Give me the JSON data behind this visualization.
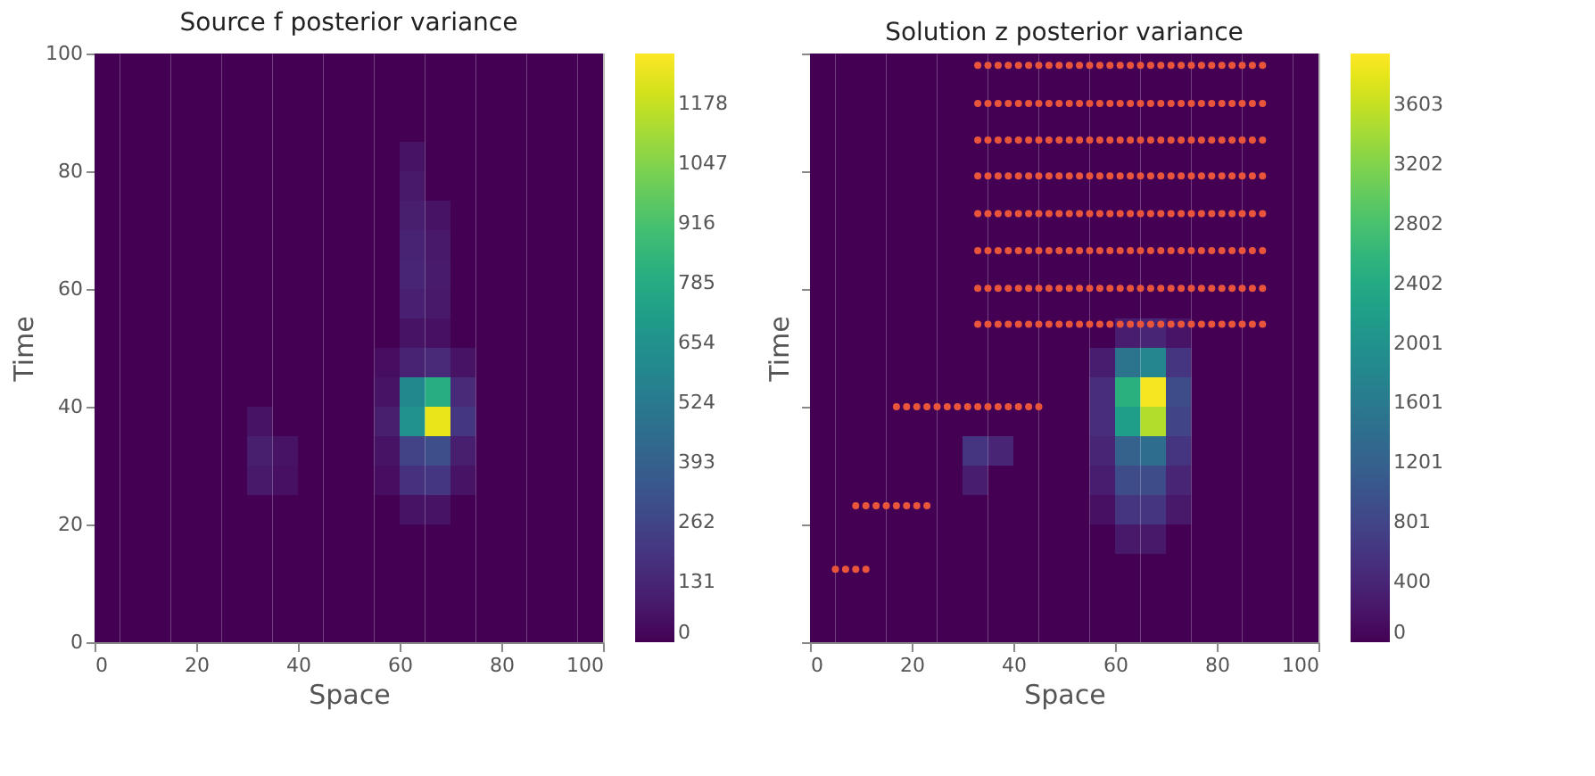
{
  "chart_data": [
    {
      "type": "heatmap",
      "title": "Source f posterior variance",
      "xlabel": "Space",
      "ylabel": "Time",
      "cells": [
        [
          0,
          0,
          0,
          0,
          0,
          0,
          0,
          0,
          0,
          0,
          0,
          0,
          0,
          0,
          0,
          0,
          0,
          0,
          0,
          0
        ],
        [
          0,
          0,
          0,
          0,
          0,
          0,
          0,
          0,
          0,
          0,
          0,
          0,
          0,
          0,
          0,
          0,
          0,
          0,
          0,
          0
        ],
        [
          0,
          0,
          0,
          0,
          0,
          0,
          0,
          0,
          0,
          0,
          0,
          0,
          0,
          0,
          0,
          0,
          0,
          0,
          0,
          0
        ],
        [
          0,
          0,
          0,
          0,
          0,
          0,
          0,
          0,
          0,
          0,
          0,
          0,
          60,
          0,
          0,
          0,
          0,
          0,
          0,
          0
        ],
        [
          0,
          0,
          0,
          0,
          0,
          0,
          0,
          0,
          0,
          0,
          0,
          0,
          80,
          0,
          0,
          0,
          0,
          0,
          0,
          0
        ],
        [
          0,
          0,
          0,
          0,
          0,
          0,
          0,
          0,
          0,
          0,
          0,
          0,
          100,
          60,
          0,
          0,
          0,
          0,
          0,
          0
        ],
        [
          0,
          0,
          0,
          0,
          0,
          0,
          0,
          0,
          0,
          0,
          0,
          0,
          120,
          80,
          0,
          0,
          0,
          0,
          0,
          0
        ],
        [
          0,
          0,
          0,
          0,
          0,
          0,
          0,
          0,
          0,
          0,
          0,
          0,
          130,
          90,
          0,
          0,
          0,
          0,
          0,
          0
        ],
        [
          0,
          0,
          0,
          0,
          0,
          0,
          0,
          0,
          0,
          0,
          0,
          0,
          110,
          80,
          0,
          0,
          0,
          0,
          0,
          0
        ],
        [
          0,
          0,
          0,
          0,
          0,
          0,
          0,
          0,
          0,
          0,
          0,
          0,
          60,
          50,
          0,
          0,
          0,
          0,
          0,
          0
        ],
        [
          0,
          0,
          0,
          0,
          0,
          0,
          0,
          0,
          0,
          0,
          0,
          40,
          120,
          150,
          60,
          0,
          0,
          0,
          0,
          0
        ],
        [
          0,
          0,
          0,
          0,
          0,
          0,
          0,
          0,
          0,
          0,
          0,
          60,
          600,
          800,
          150,
          0,
          0,
          0,
          0,
          0
        ],
        [
          0,
          0,
          0,
          0,
          0,
          0,
          60,
          0,
          0,
          0,
          0,
          100,
          650,
          1250,
          200,
          0,
          0,
          0,
          0,
          0
        ],
        [
          0,
          0,
          0,
          0,
          0,
          0,
          100,
          60,
          0,
          0,
          0,
          60,
          250,
          300,
          100,
          0,
          0,
          0,
          0,
          0
        ],
        [
          0,
          0,
          0,
          0,
          0,
          0,
          80,
          50,
          0,
          0,
          0,
          40,
          180,
          200,
          60,
          0,
          0,
          0,
          0,
          0
        ],
        [
          0,
          0,
          0,
          0,
          0,
          0,
          0,
          0,
          0,
          0,
          0,
          0,
          60,
          60,
          0,
          0,
          0,
          0,
          0,
          0
        ],
        [
          0,
          0,
          0,
          0,
          0,
          0,
          0,
          0,
          0,
          0,
          0,
          0,
          0,
          0,
          0,
          0,
          0,
          0,
          0,
          0
        ],
        [
          0,
          0,
          0,
          0,
          0,
          0,
          0,
          0,
          0,
          0,
          0,
          0,
          0,
          0,
          0,
          0,
          0,
          0,
          0,
          0
        ],
        [
          0,
          0,
          0,
          0,
          0,
          0,
          0,
          0,
          0,
          0,
          0,
          0,
          0,
          0,
          0,
          0,
          0,
          0,
          0,
          0
        ],
        [
          0,
          0,
          0,
          0,
          0,
          0,
          0,
          0,
          0,
          0,
          0,
          0,
          0,
          0,
          0,
          0,
          0,
          0,
          0,
          0
        ]
      ],
      "clim": [
        0,
        1290
      ],
      "cticks": [
        0,
        131,
        262,
        393,
        524,
        654,
        785,
        916,
        1047,
        1178
      ],
      "xlim": [
        0,
        100
      ],
      "xticks": [
        0,
        20,
        40,
        60,
        80,
        100
      ],
      "ylim": [
        0,
        100
      ],
      "yticks": [
        0,
        20,
        40,
        60,
        80,
        100
      ]
    },
    {
      "type": "heatmap",
      "title": "Solution z posterior variance",
      "xlabel": "Space",
      "ylabel": "Time",
      "tick_labels": "x",
      "cells": [
        [
          0,
          0,
          0,
          0,
          0,
          0,
          0,
          0,
          0,
          0,
          0,
          0,
          0,
          0,
          0,
          0,
          0,
          0,
          0,
          0
        ],
        [
          0,
          0,
          0,
          0,
          0,
          0,
          0,
          0,
          0,
          0,
          0,
          0,
          0,
          0,
          0,
          0,
          0,
          0,
          0,
          0
        ],
        [
          0,
          0,
          0,
          0,
          0,
          0,
          0,
          0,
          0,
          0,
          0,
          0,
          0,
          0,
          0,
          0,
          0,
          0,
          0,
          0
        ],
        [
          0,
          0,
          0,
          0,
          0,
          0,
          0,
          0,
          0,
          0,
          0,
          0,
          0,
          0,
          0,
          0,
          0,
          0,
          0,
          0
        ],
        [
          0,
          0,
          0,
          0,
          0,
          0,
          0,
          0,
          0,
          0,
          0,
          0,
          0,
          0,
          0,
          0,
          0,
          0,
          0,
          0
        ],
        [
          0,
          0,
          0,
          0,
          0,
          0,
          0,
          0,
          0,
          0,
          0,
          0,
          0,
          0,
          0,
          0,
          0,
          0,
          0,
          0
        ],
        [
          0,
          0,
          0,
          0,
          0,
          0,
          0,
          0,
          0,
          0,
          0,
          0,
          0,
          0,
          0,
          0,
          0,
          0,
          0,
          0
        ],
        [
          0,
          0,
          0,
          0,
          0,
          0,
          0,
          0,
          0,
          0,
          0,
          0,
          0,
          0,
          0,
          0,
          0,
          0,
          0,
          0
        ],
        [
          0,
          0,
          0,
          0,
          0,
          0,
          0,
          0,
          0,
          0,
          0,
          0,
          0,
          0,
          0,
          0,
          0,
          0,
          0,
          0
        ],
        [
          0,
          0,
          0,
          0,
          0,
          0,
          0,
          0,
          0,
          0,
          0,
          0,
          300,
          400,
          200,
          0,
          0,
          0,
          0,
          0
        ],
        [
          0,
          0,
          0,
          0,
          0,
          0,
          0,
          0,
          0,
          0,
          0,
          300,
          1500,
          1800,
          600,
          0,
          0,
          0,
          0,
          0
        ],
        [
          0,
          0,
          0,
          0,
          0,
          0,
          0,
          0,
          0,
          0,
          0,
          500,
          2500,
          3900,
          900,
          0,
          0,
          0,
          0,
          0
        ],
        [
          0,
          0,
          0,
          0,
          0,
          0,
          0,
          0,
          0,
          0,
          0,
          500,
          2200,
          3500,
          800,
          0,
          0,
          0,
          0,
          0
        ],
        [
          0,
          0,
          0,
          0,
          0,
          0,
          600,
          400,
          0,
          0,
          0,
          400,
          1200,
          1400,
          600,
          0,
          0,
          0,
          0,
          0
        ],
        [
          0,
          0,
          0,
          0,
          0,
          0,
          300,
          0,
          0,
          0,
          0,
          300,
          900,
          900,
          400,
          0,
          0,
          0,
          0,
          0
        ],
        [
          0,
          0,
          0,
          0,
          0,
          0,
          0,
          0,
          0,
          0,
          0,
          150,
          600,
          600,
          250,
          0,
          0,
          0,
          0,
          0
        ],
        [
          0,
          0,
          0,
          0,
          0,
          0,
          0,
          0,
          0,
          0,
          0,
          0,
          250,
          250,
          0,
          0,
          0,
          0,
          0,
          0
        ],
        [
          0,
          0,
          0,
          0,
          0,
          0,
          0,
          0,
          0,
          0,
          0,
          0,
          0,
          0,
          0,
          0,
          0,
          0,
          0,
          0
        ],
        [
          0,
          0,
          0,
          0,
          0,
          0,
          0,
          0,
          0,
          0,
          0,
          0,
          0,
          0,
          0,
          0,
          0,
          0,
          0,
          0
        ],
        [
          0,
          0,
          0,
          0,
          0,
          0,
          0,
          0,
          0,
          0,
          0,
          0,
          0,
          0,
          0,
          0,
          0,
          0,
          0,
          0
        ]
      ],
      "clim": [
        0,
        3950
      ],
      "cticks": [
        0,
        400,
        801,
        1201,
        1601,
        2001,
        2402,
        2802,
        3202,
        3603
      ],
      "xlim": [
        0,
        100
      ],
      "xticks": [
        0,
        20,
        40,
        60,
        80,
        100
      ],
      "ylim": [
        0,
        100
      ],
      "yticks": [
        0,
        20,
        40,
        60,
        80,
        100
      ],
      "series": [
        {
          "type": "scatter",
          "color": "#e8553a",
          "x": [
            33,
            35,
            37,
            39,
            41,
            43,
            45,
            47,
            49,
            51,
            53,
            55,
            57,
            59,
            61,
            63,
            65,
            67,
            69,
            71,
            73,
            75,
            77,
            79,
            81,
            83,
            85,
            87,
            89
          ],
          "values": [
            98,
            98,
            98,
            98,
            98,
            98,
            98,
            98,
            98,
            98,
            98,
            98,
            98,
            98,
            98,
            98,
            98,
            98,
            98,
            98,
            98,
            98,
            98,
            98,
            98,
            98,
            98,
            98,
            98
          ]
        },
        {
          "type": "scatter",
          "color": "#e8553a",
          "x": [
            33,
            35,
            37,
            39,
            41,
            43,
            45,
            47,
            49,
            51,
            53,
            55,
            57,
            59,
            61,
            63,
            65,
            67,
            69,
            71,
            73,
            75,
            77,
            79,
            81,
            83,
            85,
            87,
            89
          ],
          "values": [
            91.5,
            91.5,
            91.5,
            91.5,
            91.5,
            91.5,
            91.5,
            91.5,
            91.5,
            91.5,
            91.5,
            91.5,
            91.5,
            91.5,
            91.5,
            91.5,
            91.5,
            91.5,
            91.5,
            91.5,
            91.5,
            91.5,
            91.5,
            91.5,
            91.5,
            91.5,
            91.5,
            91.5,
            91.5
          ]
        },
        {
          "type": "scatter",
          "color": "#e8553a",
          "x": [
            33,
            35,
            37,
            39,
            41,
            43,
            45,
            47,
            49,
            51,
            53,
            55,
            57,
            59,
            61,
            63,
            65,
            67,
            69,
            71,
            73,
            75,
            77,
            79,
            81,
            83,
            85,
            87,
            89
          ],
          "values": [
            85.3,
            85.3,
            85.3,
            85.3,
            85.3,
            85.3,
            85.3,
            85.3,
            85.3,
            85.3,
            85.3,
            85.3,
            85.3,
            85.3,
            85.3,
            85.3,
            85.3,
            85.3,
            85.3,
            85.3,
            85.3,
            85.3,
            85.3,
            85.3,
            85.3,
            85.3,
            85.3,
            85.3,
            85.3
          ]
        },
        {
          "type": "scatter",
          "color": "#e8553a",
          "x": [
            33,
            35,
            37,
            39,
            41,
            43,
            45,
            47,
            49,
            51,
            53,
            55,
            57,
            59,
            61,
            63,
            65,
            67,
            69,
            71,
            73,
            75,
            77,
            79,
            81,
            83,
            85,
            87,
            89
          ],
          "values": [
            79.2,
            79.2,
            79.2,
            79.2,
            79.2,
            79.2,
            79.2,
            79.2,
            79.2,
            79.2,
            79.2,
            79.2,
            79.2,
            79.2,
            79.2,
            79.2,
            79.2,
            79.2,
            79.2,
            79.2,
            79.2,
            79.2,
            79.2,
            79.2,
            79.2,
            79.2,
            79.2,
            79.2,
            79.2
          ]
        },
        {
          "type": "scatter",
          "color": "#e8553a",
          "x": [
            33,
            35,
            37,
            39,
            41,
            43,
            45,
            47,
            49,
            51,
            53,
            55,
            57,
            59,
            61,
            63,
            65,
            67,
            69,
            71,
            73,
            75,
            77,
            79,
            81,
            83,
            85,
            87,
            89
          ],
          "values": [
            72.8,
            72.8,
            72.8,
            72.8,
            72.8,
            72.8,
            72.8,
            72.8,
            72.8,
            72.8,
            72.8,
            72.8,
            72.8,
            72.8,
            72.8,
            72.8,
            72.8,
            72.8,
            72.8,
            72.8,
            72.8,
            72.8,
            72.8,
            72.8,
            72.8,
            72.8,
            72.8,
            72.8,
            72.8
          ]
        },
        {
          "type": "scatter",
          "color": "#e8553a",
          "x": [
            33,
            35,
            37,
            39,
            41,
            43,
            45,
            47,
            49,
            51,
            53,
            55,
            57,
            59,
            61,
            63,
            65,
            67,
            69,
            71,
            73,
            75,
            77,
            79,
            81,
            83,
            85,
            87,
            89
          ],
          "values": [
            66.5,
            66.5,
            66.5,
            66.5,
            66.5,
            66.5,
            66.5,
            66.5,
            66.5,
            66.5,
            66.5,
            66.5,
            66.5,
            66.5,
            66.5,
            66.5,
            66.5,
            66.5,
            66.5,
            66.5,
            66.5,
            66.5,
            66.5,
            66.5,
            66.5,
            66.5,
            66.5,
            66.5,
            66.5
          ]
        },
        {
          "type": "scatter",
          "color": "#e8553a",
          "x": [
            33,
            35,
            37,
            39,
            41,
            43,
            45,
            47,
            49,
            51,
            53,
            55,
            57,
            59,
            61,
            63,
            65,
            67,
            69,
            71,
            73,
            75,
            77,
            79,
            81,
            83,
            85,
            87,
            89
          ],
          "values": [
            60.1,
            60.1,
            60.1,
            60.1,
            60.1,
            60.1,
            60.1,
            60.1,
            60.1,
            60.1,
            60.1,
            60.1,
            60.1,
            60.1,
            60.1,
            60.1,
            60.1,
            60.1,
            60.1,
            60.1,
            60.1,
            60.1,
            60.1,
            60.1,
            60.1,
            60.1,
            60.1,
            60.1,
            60.1
          ]
        },
        {
          "type": "scatter",
          "color": "#e8553a",
          "x": [
            33,
            35,
            37,
            39,
            41,
            43,
            45,
            47,
            49,
            51,
            53,
            55,
            57,
            59,
            61,
            63,
            65,
            67,
            69,
            71,
            73,
            75,
            77,
            79,
            81,
            83,
            85,
            87,
            89
          ],
          "values": [
            54,
            54,
            54,
            54,
            54,
            54,
            54,
            54,
            54,
            54,
            54,
            54,
            54,
            54,
            54,
            54,
            54,
            54,
            54,
            54,
            54,
            54,
            54,
            54,
            54,
            54,
            54,
            54,
            54
          ]
        },
        {
          "type": "scatter",
          "color": "#e8553a",
          "x": [
            17,
            19,
            21,
            23,
            25,
            27,
            29,
            31,
            33,
            35,
            37,
            39,
            41,
            43,
            45
          ],
          "values": [
            40,
            40,
            40,
            40,
            40,
            40,
            40,
            40,
            40,
            40,
            40,
            40,
            40,
            40,
            40
          ]
        },
        {
          "type": "scatter",
          "color": "#e8553a",
          "x": [
            9,
            11,
            13,
            15,
            17,
            19,
            21,
            23
          ],
          "values": [
            23.2,
            23.2,
            23.2,
            23.2,
            23.2,
            23.2,
            23.2,
            23.2
          ]
        },
        {
          "type": "scatter",
          "color": "#e8553a",
          "x": [
            5,
            7,
            9,
            11
          ],
          "values": [
            12.4,
            12.4,
            12.4,
            12.4
          ]
        }
      ]
    }
  ]
}
